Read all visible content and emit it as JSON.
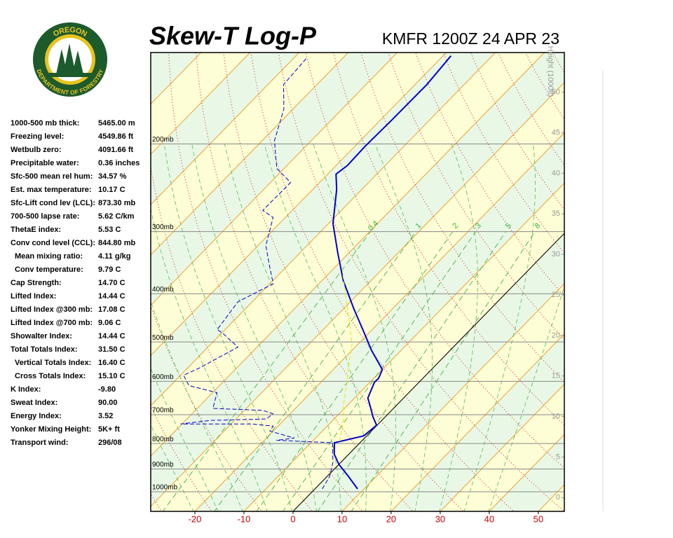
{
  "logo": {
    "top": "OREGON",
    "bottom": "DEPARTMENT OF FORESTRY"
  },
  "stats": [
    {
      "label": "1000-500 mb thick:",
      "value": "5465.00 m"
    },
    {
      "label": "Freezing level:",
      "value": "4549.86 ft"
    },
    {
      "label": "Wetbulb zero:",
      "value": "4091.66 ft"
    },
    {
      "label": "Precipitable water:",
      "value": "0.36 inches"
    },
    {
      "label": "Sfc-500 mean rel hum:",
      "value": "34.57 %"
    },
    {
      "label": "Est. max temperature:",
      "value": "10.17 C"
    },
    {
      "label": "Sfc-Lift cond lev (LCL):",
      "value": "873.30 mb"
    },
    {
      "label": "700-500 lapse rate:",
      "value": "5.62 C/km"
    },
    {
      "label": "ThetaE index:",
      "value": "5.53 C"
    },
    {
      "label": "Conv cond level (CCL):",
      "value": "844.80 mb"
    },
    {
      "label": "Mean mixing ratio:",
      "value": "4.11 g/kg"
    },
    {
      "label": "Conv temperature:",
      "value": "9.79 C"
    },
    {
      "label": "Cap Strength:",
      "value": "14.70 C"
    },
    {
      "label": "Lifted Index:",
      "value": "14.44 C"
    },
    {
      "label": "Lifted Index @300 mb:",
      "value": "17.08 C"
    },
    {
      "label": "Lifted Index @700 mb:",
      "value": "9.06 C"
    },
    {
      "label": "Showalter Index:",
      "value": "14.44 C"
    },
    {
      "label": "Total Totals Index:",
      "value": "31.50 C"
    },
    {
      "label": "Vertical Totals Index:",
      "value": "16.40 C"
    },
    {
      "label": "Cross Totals Index:",
      "value": "15.10 C"
    },
    {
      "label": "K Index:",
      "value": "-9.80"
    },
    {
      "label": "Sweat Index:",
      "value": "90.00"
    },
    {
      "label": "Energy Index:",
      "value": "3.52"
    },
    {
      "label": "Yonker Mixing Height:",
      "value": "5K+ ft"
    },
    {
      "label": "Transport wind:",
      "value": "296/08"
    }
  ],
  "chart_data": {
    "type": "skewt",
    "title": "Skew-T Log-P",
    "subtitle": "KMFR 1200Z 24 APR 23",
    "y2label": "Height (1000ft)",
    "xlim": [
      -29,
      55.3
    ],
    "xticks": [
      -20,
      -10,
      0,
      10,
      20,
      30,
      40,
      50
    ],
    "ylim": [
      1095,
      131
    ],
    "log_y": true,
    "yticks": [
      {
        "value": 1000,
        "label": "1000mb"
      },
      {
        "value": 900,
        "label": "900mb"
      },
      {
        "value": 800,
        "label": "800mb"
      },
      {
        "value": 700,
        "label": "700mb"
      },
      {
        "value": 600,
        "label": "600mb"
      },
      {
        "value": 500,
        "label": "500mb"
      },
      {
        "value": 400,
        "label": "400mb"
      },
      {
        "value": 300,
        "label": "300mb"
      },
      {
        "value": 200,
        "label": "200mb"
      }
    ],
    "y2lim": [
      -1.7,
      54.9
    ],
    "y2ticks": [
      0,
      5,
      10,
      15,
      20,
      25,
      30,
      35,
      40,
      45,
      50
    ],
    "mixing_ratios": [
      0.4,
      1,
      2,
      3,
      5,
      8
    ],
    "series": [
      {
        "color": "#0000cc",
        "dashed": false,
        "width": 2,
        "pressure": [
          987,
          931,
          881,
          840,
          797,
          772,
          735,
          707,
          674,
          648,
          602,
          592,
          568,
          520,
          480,
          428,
          376,
          331,
          289,
          247,
          230,
          221,
          203,
          179,
          152,
          133
        ],
        "values": [
          8.7,
          4.3,
          0.0,
          -3.0,
          -5.2,
          -0.6,
          -0.1,
          -2.5,
          -5.1,
          -7.3,
          -9.1,
          -9.0,
          -10.0,
          -16.0,
          -20.9,
          -28.0,
          -35.7,
          -42.3,
          -49.1,
          -55.1,
          -58.3,
          -57.7,
          -57.9,
          -57.7,
          -57.6,
          -58.4
        ]
      },
      {
        "color": "#0000cc",
        "dashed": true,
        "width": 1,
        "pressure": [
          987,
          931,
          873,
          797,
          792,
          788,
          780,
          755,
          738,
          731,
          731,
          719,
          714,
          697,
          686,
          680,
          632,
          612,
          583,
          564,
          512,
          480,
          472,
          415,
          382,
          353,
          320,
          281,
          272,
          259,
          239,
          224,
          197,
          170,
          152,
          134
        ],
        "values": [
          1.5,
          0.5,
          -1.6,
          -5.6,
          -12.2,
          -17.5,
          -14.3,
          -20.7,
          -21.0,
          -25.7,
          -40.3,
          -35.0,
          -23.8,
          -23.5,
          -26.3,
          -36.8,
          -39.1,
          -46.2,
          -49.4,
          -47.6,
          -43.9,
          -49.8,
          -51.6,
          -52.9,
          -49.3,
          -53.4,
          -58.4,
          -62.5,
          -66.0,
          -66.0,
          -65.9,
          -71.5,
          -77.5,
          -81.9,
          -86.8,
          -87.4
        ]
      },
      {
        "color": "#e8e800",
        "dashed": true,
        "width": 1,
        "pressure": [
          792,
          719,
          674,
          612,
          556,
          504,
          415,
          353
        ],
        "values": [
          -4.4,
          -7.8,
          -10.6,
          -14.1,
          -17.8,
          -21.3,
          -30.8,
          -38.7
        ]
      }
    ]
  }
}
